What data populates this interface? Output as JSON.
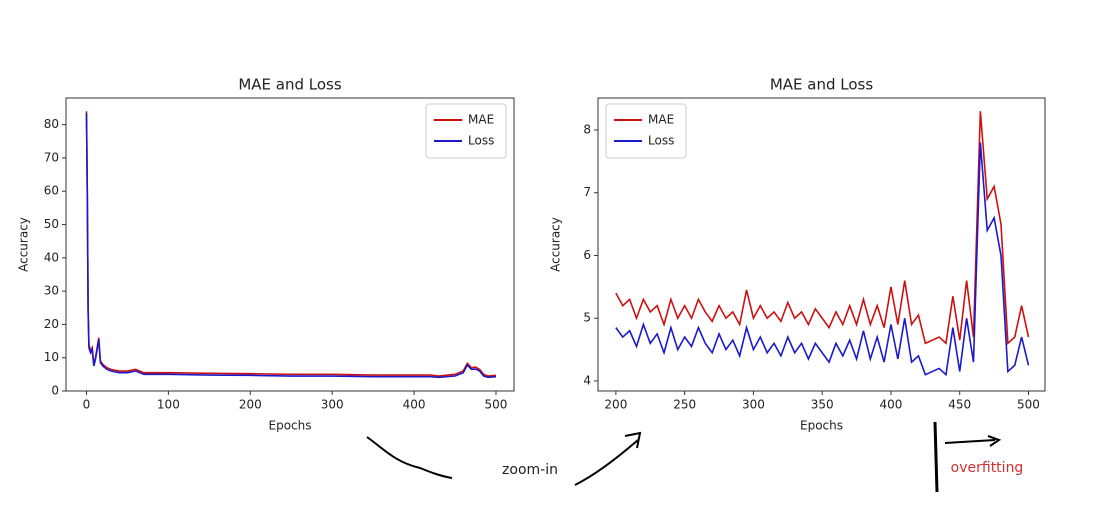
{
  "chart_data": [
    {
      "type": "line",
      "title": "MAE and Loss",
      "xlabel": "Epochs",
      "ylabel": "Accuracy",
      "x": [
        0,
        1,
        2,
        3,
        5,
        7,
        9,
        11,
        13,
        15,
        17,
        20,
        25,
        30,
        40,
        50,
        60,
        70,
        100,
        150,
        200,
        250,
        300,
        350,
        400,
        420,
        430,
        450,
        460,
        465,
        470,
        475,
        480,
        485,
        490,
        500
      ],
      "series": [
        {
          "name": "MAE",
          "color": "#cc1111",
          "values": [
            84,
            60,
            25,
            14,
            12,
            13,
            8,
            10,
            13,
            16,
            9,
            8,
            7,
            6.5,
            6,
            6,
            6.5,
            5.5,
            5.5,
            5.3,
            5.2,
            5,
            5,
            4.8,
            4.8,
            4.8,
            4.5,
            5,
            6,
            8.3,
            7,
            7.2,
            6.5,
            5,
            4.5,
            4.7
          ]
        },
        {
          "name": "Loss",
          "color": "#1a1acc",
          "values": [
            83.5,
            59,
            24,
            13,
            11.5,
            12.5,
            7.5,
            9.5,
            12.5,
            15.5,
            8.5,
            7.5,
            6.5,
            6,
            5.5,
            5.5,
            6,
            5,
            5,
            4.8,
            4.7,
            4.5,
            4.5,
            4.3,
            4.3,
            4.3,
            4.1,
            4.5,
            5.5,
            7.8,
            6.5,
            6.6,
            6,
            4.5,
            4.1,
            4.3
          ]
        }
      ],
      "xlim": [
        -25,
        522
      ],
      "ylim": [
        0,
        88
      ],
      "xticks": [
        0,
        100,
        200,
        300,
        400,
        500
      ],
      "yticks": [
        0,
        10,
        20,
        30,
        40,
        50,
        60,
        70,
        80
      ],
      "legend": "upper right"
    },
    {
      "type": "line",
      "title": "MAE and Loss",
      "xlabel": "Epochs",
      "ylabel": "Accuracy",
      "x": [
        200,
        205,
        210,
        215,
        220,
        225,
        230,
        235,
        240,
        245,
        250,
        255,
        260,
        265,
        270,
        275,
        280,
        285,
        290,
        295,
        300,
        305,
        310,
        315,
        320,
        325,
        330,
        335,
        340,
        345,
        350,
        355,
        360,
        365,
        370,
        375,
        380,
        385,
        390,
        395,
        400,
        405,
        410,
        415,
        420,
        425,
        430,
        435,
        440,
        445,
        450,
        455,
        460,
        465,
        470,
        475,
        480,
        485,
        490,
        495,
        500
      ],
      "series": [
        {
          "name": "MAE",
          "color": "#cc1111",
          "values": [
            5.4,
            5.2,
            5.3,
            5.0,
            5.3,
            5.1,
            5.2,
            4.9,
            5.3,
            5.0,
            5.2,
            5.0,
            5.3,
            5.1,
            4.95,
            5.2,
            5.0,
            5.1,
            4.9,
            5.45,
            5.0,
            5.2,
            5.0,
            5.1,
            4.95,
            5.25,
            5.0,
            5.1,
            4.9,
            5.15,
            5.0,
            4.85,
            5.1,
            4.9,
            5.2,
            4.9,
            5.3,
            4.9,
            5.2,
            4.85,
            5.5,
            4.9,
            5.6,
            4.9,
            5.05,
            4.6,
            4.65,
            4.7,
            4.6,
            5.35,
            4.65,
            5.6,
            4.7,
            8.3,
            6.9,
            7.1,
            6.5,
            4.6,
            4.7,
            5.2,
            4.7
          ]
        },
        {
          "name": "Loss",
          "color": "#1a1acc",
          "values": [
            4.85,
            4.7,
            4.8,
            4.55,
            4.9,
            4.6,
            4.75,
            4.45,
            4.85,
            4.5,
            4.7,
            4.55,
            4.85,
            4.6,
            4.45,
            4.75,
            4.5,
            4.65,
            4.4,
            4.85,
            4.5,
            4.7,
            4.45,
            4.6,
            4.4,
            4.7,
            4.45,
            4.6,
            4.35,
            4.6,
            4.45,
            4.3,
            4.6,
            4.4,
            4.65,
            4.35,
            4.8,
            4.35,
            4.7,
            4.3,
            4.9,
            4.35,
            5.0,
            4.3,
            4.4,
            4.1,
            4.15,
            4.2,
            4.1,
            4.85,
            4.15,
            5.0,
            4.3,
            7.8,
            6.4,
            6.6,
            6.0,
            4.15,
            4.25,
            4.7,
            4.25
          ]
        }
      ],
      "xlim": [
        187,
        512
      ],
      "ylim": [
        3.84,
        8.51
      ],
      "xticks": [
        200,
        250,
        300,
        350,
        400,
        450,
        500
      ],
      "yticks": [
        4,
        5,
        6,
        7,
        8
      ],
      "legend": "upper left"
    }
  ],
  "annotations": [
    "zoom-in",
    "overfitting"
  ]
}
